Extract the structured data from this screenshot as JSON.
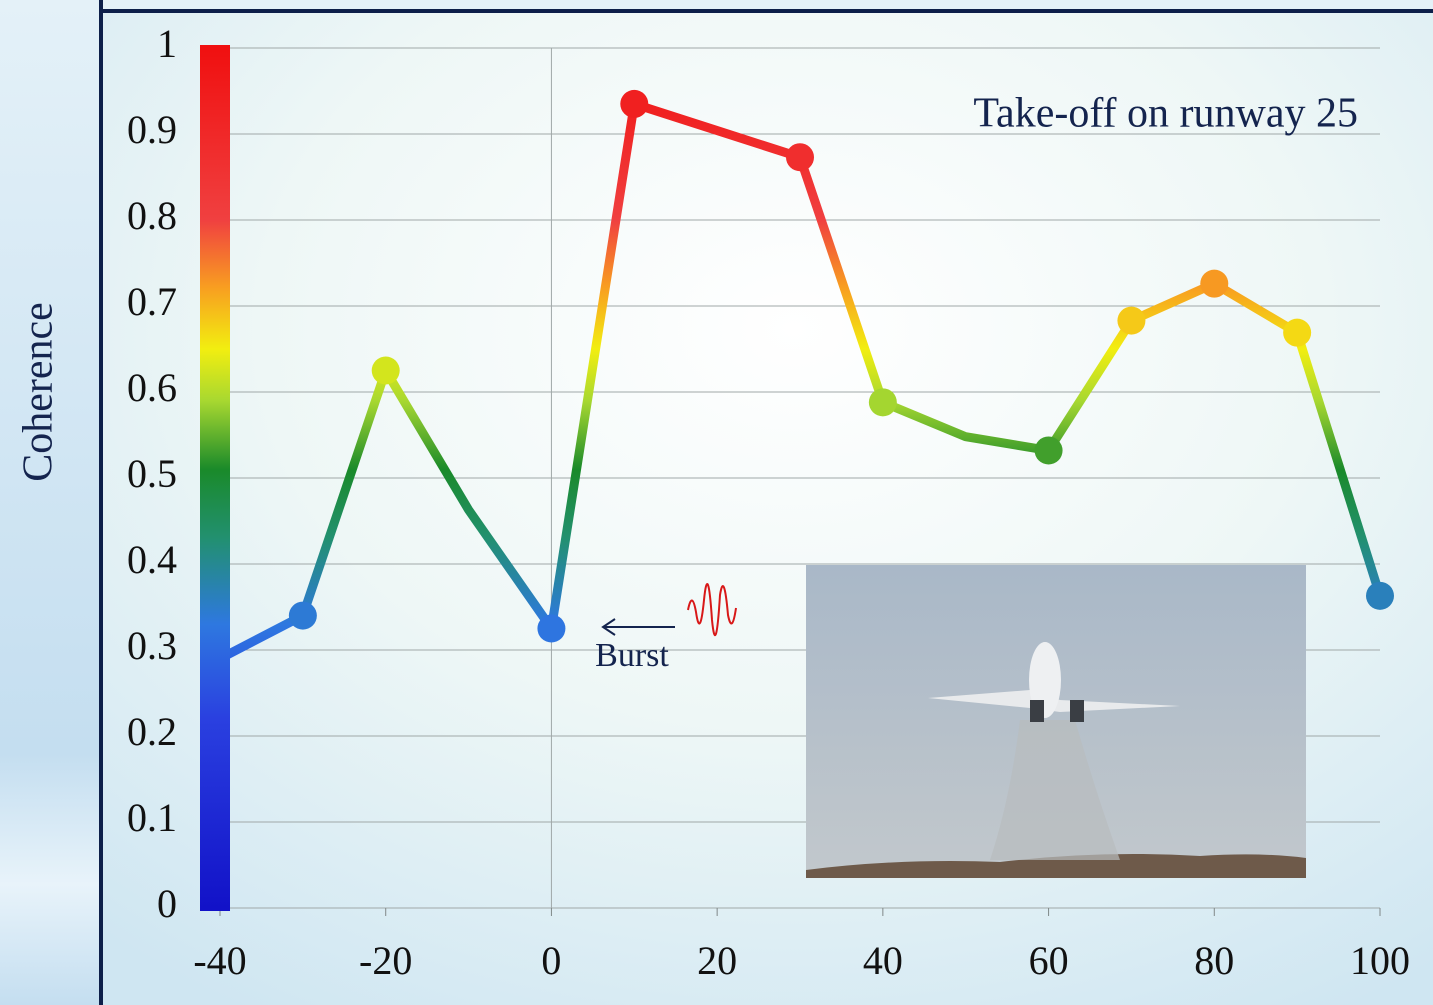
{
  "chart_data": {
    "type": "line",
    "y_label": "Coherence",
    "annotation": "Take-off on runway 25",
    "burst_label": "Burst",
    "x": [
      -40,
      -30,
      -20,
      -10,
      0,
      10,
      30,
      40,
      50,
      60,
      70,
      80,
      90,
      100
    ],
    "series": [
      {
        "values": [
          0.29,
          0.34,
          0.625,
          0.463,
          0.325,
          0.935,
          0.873,
          0.588,
          0.548,
          0.532,
          0.683,
          0.726,
          0.669,
          0.363
        ],
        "markers": [
          false,
          true,
          true,
          false,
          true,
          true,
          true,
          true,
          false,
          true,
          true,
          true,
          true,
          true
        ]
      }
    ],
    "xlim": [
      -40,
      100
    ],
    "ylim": [
      0,
      1
    ],
    "xticks": [
      -40,
      -20,
      0,
      20,
      40,
      60,
      80,
      100
    ],
    "yticks": [
      0,
      0.1,
      0.2,
      0.3,
      0.4,
      0.5,
      0.6,
      0.7,
      0.8,
      0.9,
      1
    ],
    "grid": true,
    "zero_line": true,
    "colormap": [
      {
        "value": 0,
        "color": "#1212c8"
      },
      {
        "value": 0.22,
        "color": "#2a40e0"
      },
      {
        "value": 0.33,
        "color": "#2e78e0"
      },
      {
        "value": 0.43,
        "color": "#229070"
      },
      {
        "value": 0.51,
        "color": "#1a8a2a"
      },
      {
        "value": 0.59,
        "color": "#a8d830"
      },
      {
        "value": 0.65,
        "color": "#f2ee10"
      },
      {
        "value": 0.72,
        "color": "#f8a020"
      },
      {
        "value": 0.8,
        "color": "#f04040"
      },
      {
        "value": 1,
        "color": "#f01010"
      }
    ]
  }
}
